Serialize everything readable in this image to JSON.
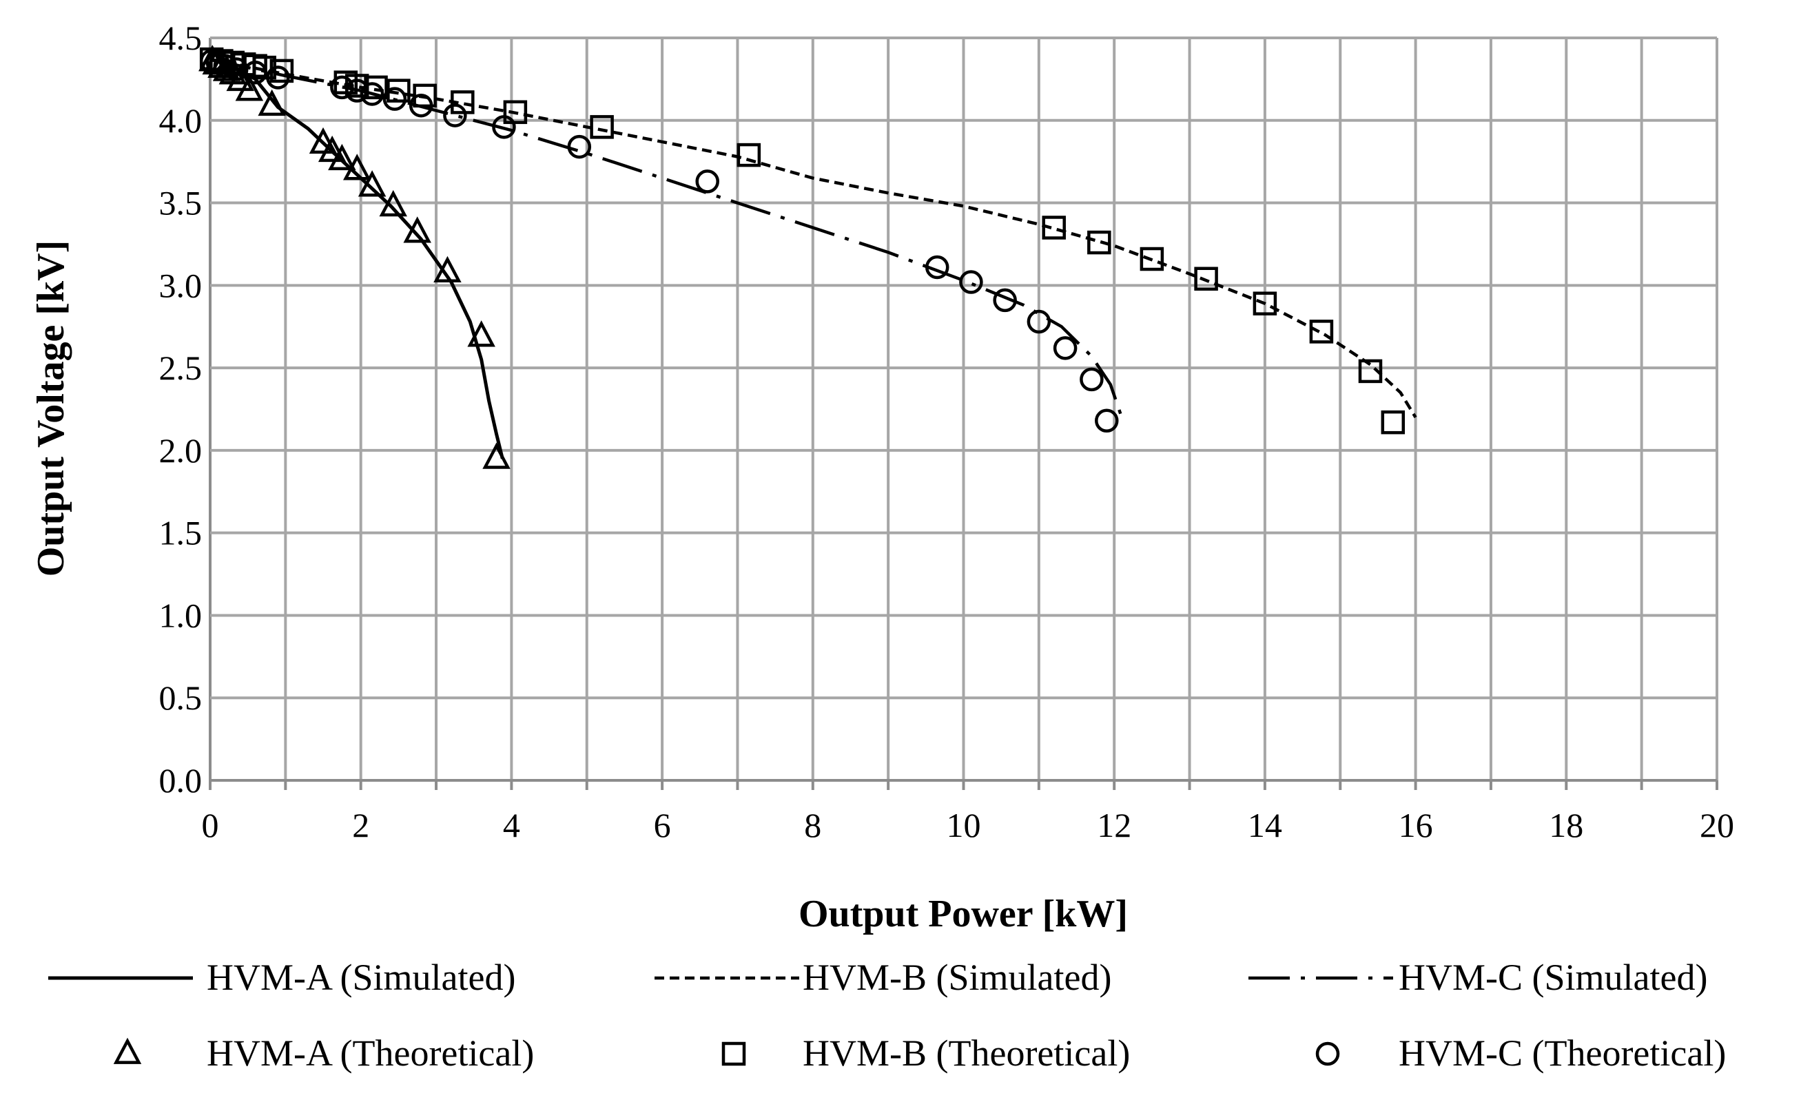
{
  "chart_data": {
    "type": "line",
    "title": "",
    "xlabel": "Output Power [kW]",
    "ylabel": "Output Voltage [kV]",
    "xlim": [
      0,
      20
    ],
    "ylim": [
      0,
      4.5
    ],
    "x_ticks": [
      "0",
      "2",
      "4",
      "6",
      "8",
      "10",
      "12",
      "14",
      "16",
      "18",
      "20"
    ],
    "y_ticks": [
      "0.0",
      "0.5",
      "1.0",
      "1.5",
      "2.0",
      "2.5",
      "3.0",
      "3.5",
      "4.0",
      "4.5"
    ],
    "grid": true,
    "legend_position": "bottom",
    "series": [
      {
        "name": "HVM-A (Simulated)",
        "kind": "line",
        "style": "solid",
        "points": [
          [
            0,
            4.37
          ],
          [
            0.3,
            4.33
          ],
          [
            0.6,
            4.25
          ],
          [
            0.9,
            4.08
          ],
          [
            1.3,
            3.95
          ],
          [
            1.6,
            3.82
          ],
          [
            2.0,
            3.65
          ],
          [
            2.4,
            3.48
          ],
          [
            2.8,
            3.28
          ],
          [
            3.2,
            3.02
          ],
          [
            3.45,
            2.78
          ],
          [
            3.6,
            2.55
          ],
          [
            3.7,
            2.3
          ],
          [
            3.8,
            2.1
          ],
          [
            3.88,
            1.95
          ]
        ]
      },
      {
        "name": "HVM-B (Simulated)",
        "kind": "line",
        "style": "dashed",
        "points": [
          [
            0,
            4.37
          ],
          [
            1,
            4.28
          ],
          [
            2,
            4.2
          ],
          [
            3,
            4.13
          ],
          [
            4,
            4.05
          ],
          [
            5,
            3.96
          ],
          [
            6,
            3.87
          ],
          [
            7,
            3.78
          ],
          [
            8,
            3.65
          ],
          [
            9,
            3.56
          ],
          [
            10,
            3.48
          ],
          [
            11,
            3.37
          ],
          [
            12,
            3.24
          ],
          [
            13,
            3.07
          ],
          [
            14,
            2.89
          ],
          [
            14.8,
            2.7
          ],
          [
            15.4,
            2.52
          ],
          [
            15.8,
            2.35
          ],
          [
            16.0,
            2.2
          ]
        ]
      },
      {
        "name": "HVM-C (Simulated)",
        "kind": "line",
        "style": "dashdot",
        "points": [
          [
            0,
            4.37
          ],
          [
            1,
            4.27
          ],
          [
            2,
            4.18
          ],
          [
            3,
            4.06
          ],
          [
            4,
            3.94
          ],
          [
            5,
            3.8
          ],
          [
            6,
            3.65
          ],
          [
            7,
            3.5
          ],
          [
            8,
            3.35
          ],
          [
            9,
            3.2
          ],
          [
            10,
            3.03
          ],
          [
            10.8,
            2.88
          ],
          [
            11.3,
            2.75
          ],
          [
            11.7,
            2.57
          ],
          [
            11.95,
            2.4
          ],
          [
            12.1,
            2.2
          ]
        ]
      },
      {
        "name": "HVM-A (Theoretical)",
        "kind": "markers",
        "marker": "triangle",
        "points": [
          [
            0.03,
            4.36
          ],
          [
            0.08,
            4.34
          ],
          [
            0.15,
            4.32
          ],
          [
            0.22,
            4.3
          ],
          [
            0.3,
            4.28
          ],
          [
            0.4,
            4.24
          ],
          [
            0.52,
            4.18
          ],
          [
            0.82,
            4.09
          ],
          [
            1.5,
            3.86
          ],
          [
            1.62,
            3.81
          ],
          [
            1.75,
            3.76
          ],
          [
            1.95,
            3.7
          ],
          [
            2.15,
            3.6
          ],
          [
            2.43,
            3.48
          ],
          [
            2.75,
            3.32
          ],
          [
            3.15,
            3.08
          ],
          [
            3.6,
            2.69
          ],
          [
            3.8,
            1.95
          ]
        ]
      },
      {
        "name": "HVM-B (Theoretical)",
        "kind": "markers",
        "marker": "square",
        "points": [
          [
            0.02,
            4.37
          ],
          [
            0.15,
            4.36
          ],
          [
            0.3,
            4.35
          ],
          [
            0.45,
            4.34
          ],
          [
            0.6,
            4.33
          ],
          [
            0.72,
            4.32
          ],
          [
            0.95,
            4.3
          ],
          [
            1.8,
            4.23
          ],
          [
            1.95,
            4.21
          ],
          [
            2.2,
            4.2
          ],
          [
            2.5,
            4.18
          ],
          [
            2.85,
            4.15
          ],
          [
            3.35,
            4.11
          ],
          [
            4.05,
            4.05
          ],
          [
            5.2,
            3.96
          ],
          [
            7.15,
            3.79
          ],
          [
            11.2,
            3.35
          ],
          [
            11.8,
            3.26
          ],
          [
            12.5,
            3.16
          ],
          [
            13.22,
            3.04
          ],
          [
            14,
            2.89
          ],
          [
            14.75,
            2.72
          ],
          [
            15.4,
            2.48
          ],
          [
            15.7,
            2.17
          ]
        ]
      },
      {
        "name": "HVM-C (Theoretical)",
        "kind": "markers",
        "marker": "circle",
        "points": [
          [
            0.02,
            4.36
          ],
          [
            0.1,
            4.35
          ],
          [
            0.2,
            4.33
          ],
          [
            0.35,
            4.31
          ],
          [
            0.6,
            4.29
          ],
          [
            0.9,
            4.26
          ],
          [
            1.75,
            4.2
          ],
          [
            1.95,
            4.18
          ],
          [
            2.15,
            4.16
          ],
          [
            2.45,
            4.13
          ],
          [
            2.8,
            4.09
          ],
          [
            3.25,
            4.03
          ],
          [
            3.9,
            3.96
          ],
          [
            4.9,
            3.84
          ],
          [
            6.6,
            3.63
          ],
          [
            9.65,
            3.11
          ],
          [
            10.1,
            3.02
          ],
          [
            10.55,
            2.91
          ],
          [
            11,
            2.78
          ],
          [
            11.35,
            2.62
          ],
          [
            11.7,
            2.43
          ],
          [
            11.9,
            2.18
          ]
        ]
      }
    ]
  }
}
